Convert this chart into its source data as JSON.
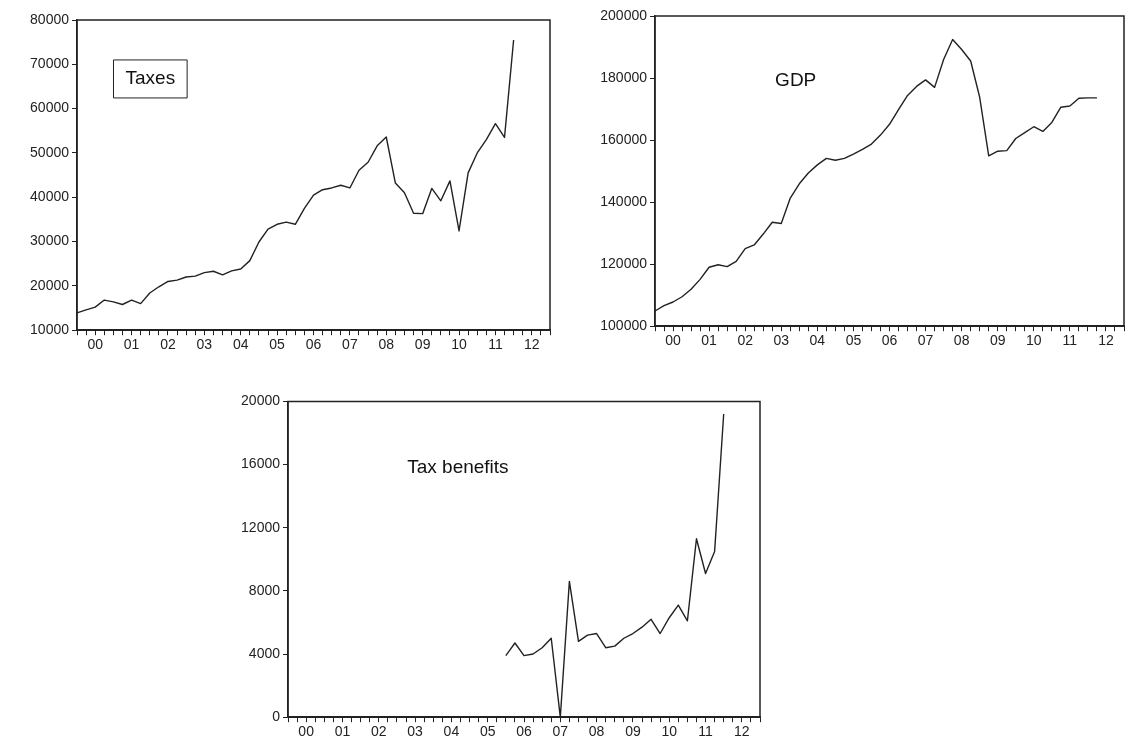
{
  "chart_data": [
    {
      "type": "line",
      "title": "Taxes",
      "color": "#222222",
      "marker": "none",
      "grid": false,
      "categories": [
        null,
        null,
        "00",
        null,
        null,
        null,
        "01",
        null,
        null,
        null,
        "02",
        null,
        null,
        null,
        "03",
        null,
        null,
        null,
        "04",
        null,
        null,
        null,
        "05",
        null,
        null,
        null,
        "06",
        null,
        null,
        null,
        "07",
        null,
        null,
        null,
        "08",
        null,
        null,
        null,
        "09",
        null,
        null,
        null,
        "10",
        null,
        null,
        null,
        "11",
        null,
        null,
        null,
        "12",
        null,
        null
      ],
      "values": [
        13900,
        14600,
        15200,
        16800,
        16400,
        15800,
        16800,
        16000,
        18400,
        19800,
        21000,
        21300,
        22000,
        22200,
        23000,
        23300,
        22500,
        23400,
        23800,
        25700,
        29900,
        32800,
        33900,
        34400,
        33900,
        37500,
        40500,
        41700,
        42100,
        42700,
        42100,
        46100,
        47900,
        51600,
        53600,
        43200,
        41000,
        36400,
        36300,
        42000,
        39200,
        43700,
        32400,
        45500,
        50000,
        53000,
        56600,
        53500,
        75500,
        null,
        null,
        null,
        null
      ],
      "ylim": [
        10000,
        80000
      ],
      "yticks": [
        10000,
        20000,
        30000,
        40000,
        50000,
        60000,
        70000,
        80000
      ]
    },
    {
      "type": "line",
      "title": "GDP",
      "color": "#222222",
      "marker": "none",
      "grid": false,
      "categories": [
        null,
        null,
        "00",
        null,
        null,
        null,
        "01",
        null,
        null,
        null,
        "02",
        null,
        null,
        null,
        "03",
        null,
        null,
        null,
        "04",
        null,
        null,
        null,
        "05",
        null,
        null,
        null,
        "06",
        null,
        null,
        null,
        "07",
        null,
        null,
        null,
        "08",
        null,
        null,
        null,
        "09",
        null,
        null,
        null,
        "10",
        null,
        null,
        null,
        "11",
        null,
        null,
        null,
        "12",
        null,
        null
      ],
      "values": [
        104900,
        106600,
        107800,
        109500,
        111900,
        115100,
        119000,
        119800,
        119200,
        120900,
        125000,
        126200,
        129700,
        133500,
        133100,
        141300,
        145900,
        149400,
        152000,
        154100,
        153500,
        154100,
        155500,
        157000,
        158700,
        161600,
        165100,
        169800,
        174400,
        177300,
        179400,
        177000,
        186000,
        192400,
        189200,
        185500,
        173800,
        154900,
        156400,
        156600,
        160500,
        162400,
        164300,
        162800,
        165700,
        170600,
        171000,
        173500,
        173600,
        173600,
        null,
        null,
        null
      ],
      "ylim": [
        100000,
        200000
      ],
      "yticks": [
        100000,
        120000,
        140000,
        160000,
        180000,
        200000
      ]
    },
    {
      "type": "line",
      "title": "Tax benefits",
      "color": "#222222",
      "marker": "none",
      "grid": false,
      "categories": [
        null,
        null,
        "00",
        null,
        null,
        null,
        "01",
        null,
        null,
        null,
        "02",
        null,
        null,
        null,
        "03",
        null,
        null,
        null,
        "04",
        null,
        null,
        null,
        "05",
        null,
        null,
        null,
        "06",
        null,
        null,
        null,
        "07",
        null,
        null,
        null,
        "08",
        null,
        null,
        null,
        "09",
        null,
        null,
        null,
        "10",
        null,
        null,
        null,
        "11",
        null,
        null,
        null,
        "12",
        null,
        null
      ],
      "values": [
        null,
        null,
        null,
        null,
        null,
        null,
        null,
        null,
        null,
        null,
        null,
        null,
        null,
        null,
        null,
        null,
        null,
        null,
        null,
        null,
        null,
        null,
        null,
        null,
        3900,
        4700,
        3900,
        4000,
        4400,
        5000,
        0,
        8600,
        4800,
        5200,
        5300,
        4400,
        4500,
        5000,
        5300,
        5700,
        6200,
        5300,
        6300,
        7100,
        6100,
        11300,
        9100,
        10500,
        19200,
        null,
        null,
        null,
        null
      ],
      "ylim": [
        0,
        20000
      ],
      "yticks": [
        0,
        4000,
        8000,
        12000,
        16000,
        20000
      ]
    }
  ]
}
